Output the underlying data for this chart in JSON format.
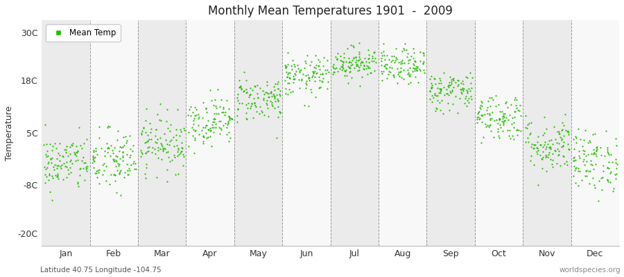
{
  "title": "Monthly Mean Temperatures 1901  -  2009",
  "ylabel": "Temperature",
  "xlabel_months": [
    "Jan",
    "Feb",
    "Mar",
    "Apr",
    "May",
    "Jun",
    "Jul",
    "Aug",
    "Sep",
    "Oct",
    "Nov",
    "Dec"
  ],
  "yticks": [
    -20,
    -8,
    5,
    18,
    30
  ],
  "ytick_labels": [
    "-20C",
    "-8C",
    "5C",
    "18C",
    "30C"
  ],
  "ylim": [
    -23,
    33
  ],
  "dot_color": "#22bb00",
  "dot_size": 2.5,
  "legend_label": "Mean Temp",
  "footer_left": "Latitude 40.75 Longitude -104.75",
  "footer_right": "worldspecies.org",
  "bg_gray": "#ebebeb",
  "bg_white": "#f8f8f8",
  "monthly_means": [
    -2.5,
    -2.0,
    2.5,
    8.0,
    13.5,
    19.0,
    22.5,
    21.5,
    15.5,
    9.0,
    2.0,
    -2.0
  ],
  "monthly_stds": [
    3.5,
    4.0,
    3.5,
    3.0,
    2.8,
    2.5,
    2.0,
    2.2,
    2.5,
    3.0,
    3.5,
    3.8
  ],
  "n_years": 109,
  "seed": 42
}
